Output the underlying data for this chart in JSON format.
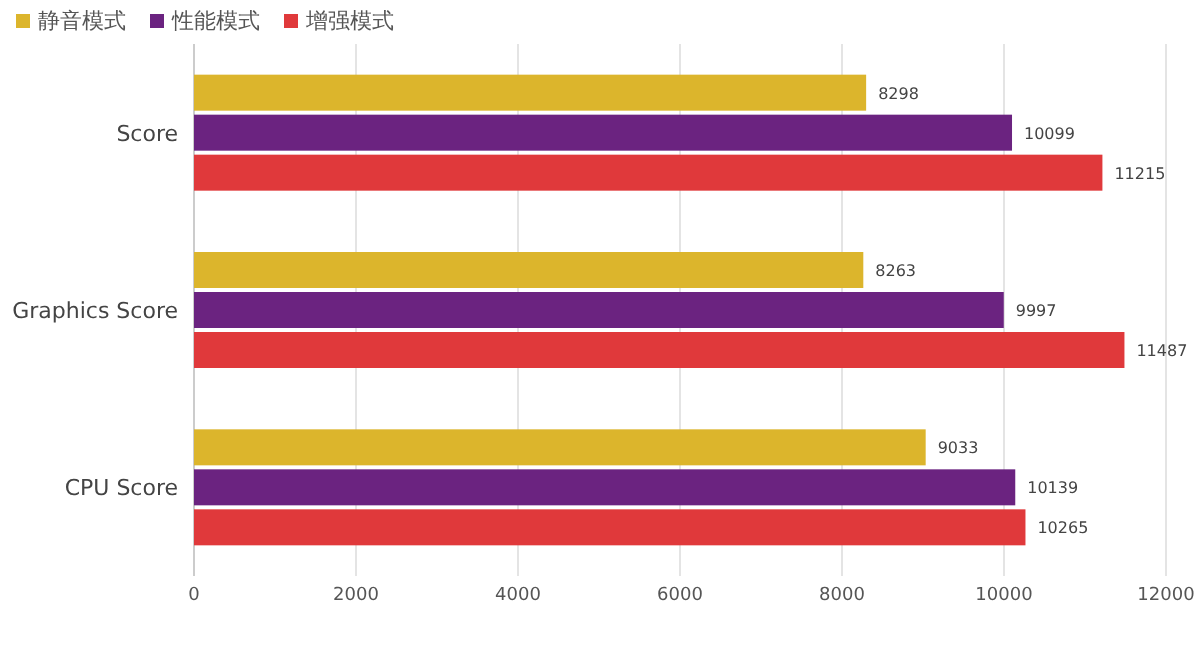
{
  "chart_data": {
    "type": "bar",
    "orientation": "horizontal",
    "categories": [
      "Score",
      "Graphics Score",
      "CPU Score"
    ],
    "series": [
      {
        "name": "静音模式",
        "color": "#dcb52c",
        "values": [
          8298,
          8263,
          9033
        ]
      },
      {
        "name": "性能模式",
        "color": "#6b2380",
        "values": [
          10099,
          9997,
          10139
        ]
      },
      {
        "name": "增强模式",
        "color": "#e0393b",
        "values": [
          11215,
          11487,
          10265
        ]
      }
    ],
    "xlim": [
      0,
      12000
    ],
    "xticks": [
      0,
      2000,
      4000,
      6000,
      8000,
      10000,
      12000
    ],
    "grid": "x",
    "legend": "top left",
    "data_labels": true
  }
}
